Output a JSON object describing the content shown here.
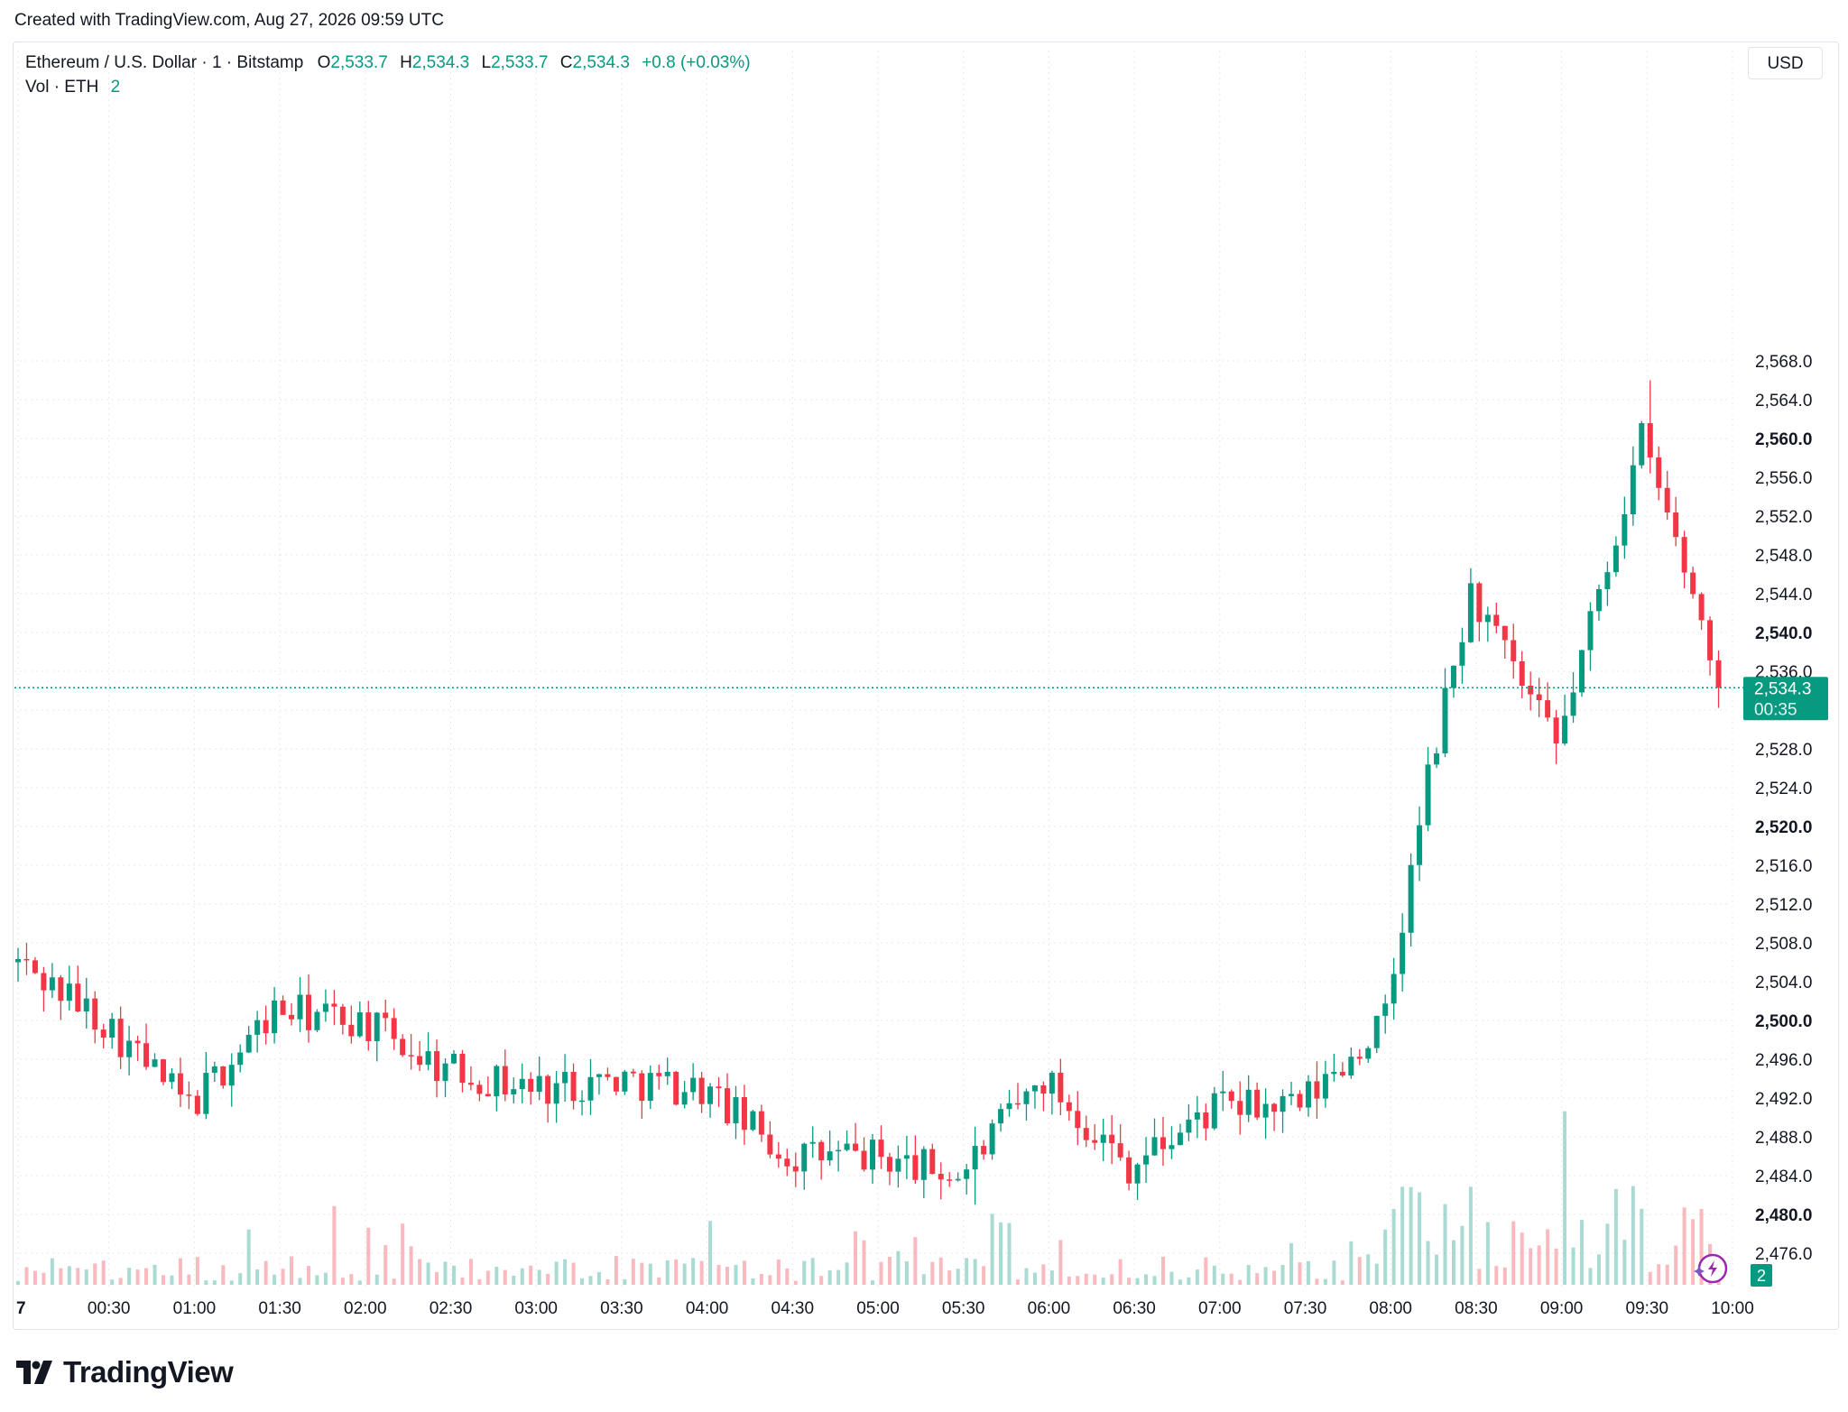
{
  "header": {
    "created_text": "Created with TradingView.com, Aug 27, 2026 09:59 UTC"
  },
  "legend": {
    "symbol": "Ethereum / U.S. Dollar · 1 · Bitstamp",
    "o_label": "O",
    "o_value": "2,533.7",
    "h_label": "H",
    "h_value": "2,534.3",
    "l_label": "L",
    "l_value": "2,533.7",
    "c_label": "C",
    "c_value": "2,534.3",
    "change": "+0.8 (+0.03%)",
    "vol_label": "Vol · ETH",
    "vol_value": "2"
  },
  "toolbar": {
    "currency": "USD"
  },
  "price_badge": {
    "price": "2,534.3",
    "countdown": "00:35"
  },
  "volume_badge": {
    "value": "2"
  },
  "footer": {
    "brand": "TradingView"
  },
  "colors": {
    "up": "#089981",
    "down": "#f23645",
    "grid": "#e6e9ef",
    "text": "#131722",
    "brand_purple": "#9c27b0"
  },
  "chart_data": {
    "type": "candlestick",
    "title": "Ethereum / U.S. Dollar · 1 · Bitstamp",
    "interval": "1 minute",
    "xlabel": "",
    "ylabel": "",
    "ylim": [
      2472.4,
      2572.0
    ],
    "y_ticks": [
      2476,
      2480,
      2484,
      2488,
      2492,
      2496,
      2500,
      2504,
      2508,
      2512,
      2516,
      2520,
      2524,
      2528,
      2532,
      2536,
      2540,
      2544,
      2548,
      2552,
      2556,
      2560,
      2564,
      2568
    ],
    "y_tick_labels": [
      "2,476.0",
      "2,480.0",
      "2,484.0",
      "2,488.0",
      "2,492.0",
      "2,496.0",
      "2,500.0",
      "2,504.0",
      "2,508.0",
      "2,512.0",
      "2,516.0",
      "2,520.0",
      "2,524.0",
      "2,528.0",
      "2,532.0",
      "2,536.0",
      "2,540.0",
      "2,544.0",
      "2,548.0",
      "2,552.0",
      "2,556.0",
      "2,560.0",
      "2,564.0",
      "2,568.0"
    ],
    "y_bold_labels": [
      "2,480.0",
      "2,500.0",
      "2,520.0",
      "2,540.0",
      "2,560.0"
    ],
    "x_ticks": [
      "7",
      "00:30",
      "01:00",
      "01:30",
      "02:00",
      "02:30",
      "03:00",
      "03:30",
      "04:00",
      "04:30",
      "05:00",
      "05:30",
      "06:00",
      "06:30",
      "07:00",
      "07:30",
      "08:00",
      "08:30",
      "09:00",
      "09:30",
      "10:00"
    ],
    "last_price": 2534.3,
    "grid": true,
    "price_path_hourly_approx": [
      {
        "t": "00:00",
        "price": 2506
      },
      {
        "t": "00:30",
        "price": 2500
      },
      {
        "t": "01:00",
        "price": 2491
      },
      {
        "t": "01:30",
        "price": 2501
      },
      {
        "t": "02:00",
        "price": 2500
      },
      {
        "t": "02:30",
        "price": 2495
      },
      {
        "t": "03:00",
        "price": 2493
      },
      {
        "t": "03:30",
        "price": 2494
      },
      {
        "t": "04:00",
        "price": 2493
      },
      {
        "t": "04:30",
        "price": 2486
      },
      {
        "t": "05:00",
        "price": 2486
      },
      {
        "t": "05:30",
        "price": 2484
      },
      {
        "t": "06:00",
        "price": 2494
      },
      {
        "t": "06:30",
        "price": 2485
      },
      {
        "t": "07:00",
        "price": 2491
      },
      {
        "t": "07:30",
        "price": 2491
      },
      {
        "t": "08:00",
        "price": 2500
      },
      {
        "t": "08:15",
        "price": 2525
      },
      {
        "t": "08:30",
        "price": 2544
      },
      {
        "t": "09:00",
        "price": 2528
      },
      {
        "t": "09:30",
        "price": 2560
      },
      {
        "t": "09:59",
        "price": 2534.3
      }
    ],
    "notable_high": 2566.0,
    "notable_low": 2481.0
  }
}
